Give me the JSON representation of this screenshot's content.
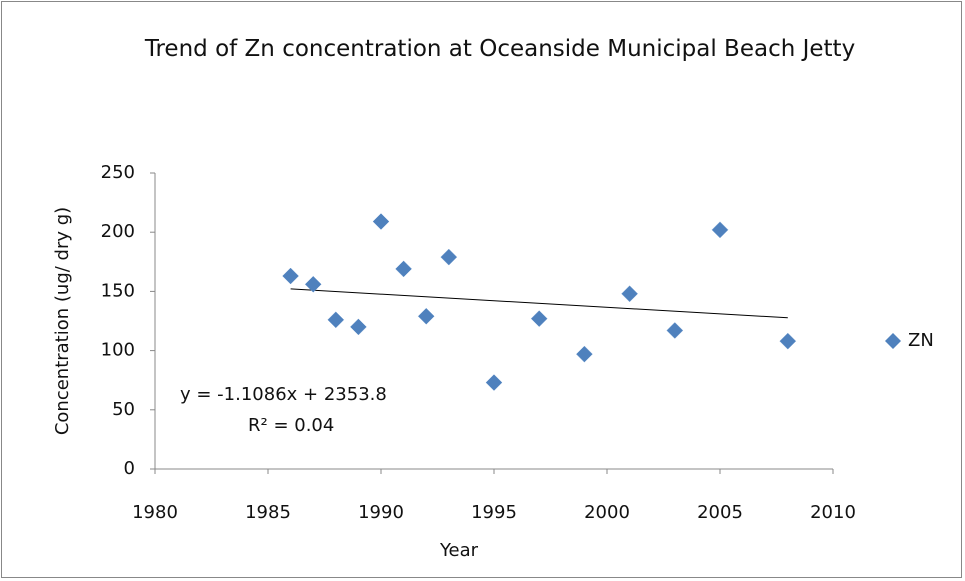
{
  "chart_data": {
    "type": "scatter",
    "title": "Trend of Zn concentration at Oceanside Municipal Beach Jetty",
    "x_label": "Year",
    "y_label": "Concentration (ug/ dry g)",
    "series": [
      {
        "name": "ZN",
        "color": "#4f81bd",
        "x": [
          1986,
          1987,
          1988,
          1989,
          1990,
          1991,
          1992,
          1993,
          1995,
          1997,
          1999,
          2001,
          2003,
          2005,
          2008
        ],
        "values": [
          163,
          156,
          126,
          120,
          209,
          169,
          129,
          179,
          73,
          127,
          97,
          148,
          117,
          202,
          108
        ]
      }
    ],
    "trendline": {
      "slope": -1.1086,
      "intercept": 2353.8,
      "equation": "y = -1.1086x + 2353.8",
      "r2": "R² = 0.04"
    },
    "xlim": [
      1980,
      2010
    ],
    "xticks": [
      1980,
      1985,
      1990,
      1995,
      2000,
      2005,
      2010
    ],
    "ylim": [
      0,
      250
    ],
    "yticks": [
      0,
      50,
      100,
      150,
      200,
      250
    ],
    "grid": false,
    "legend": "right"
  }
}
